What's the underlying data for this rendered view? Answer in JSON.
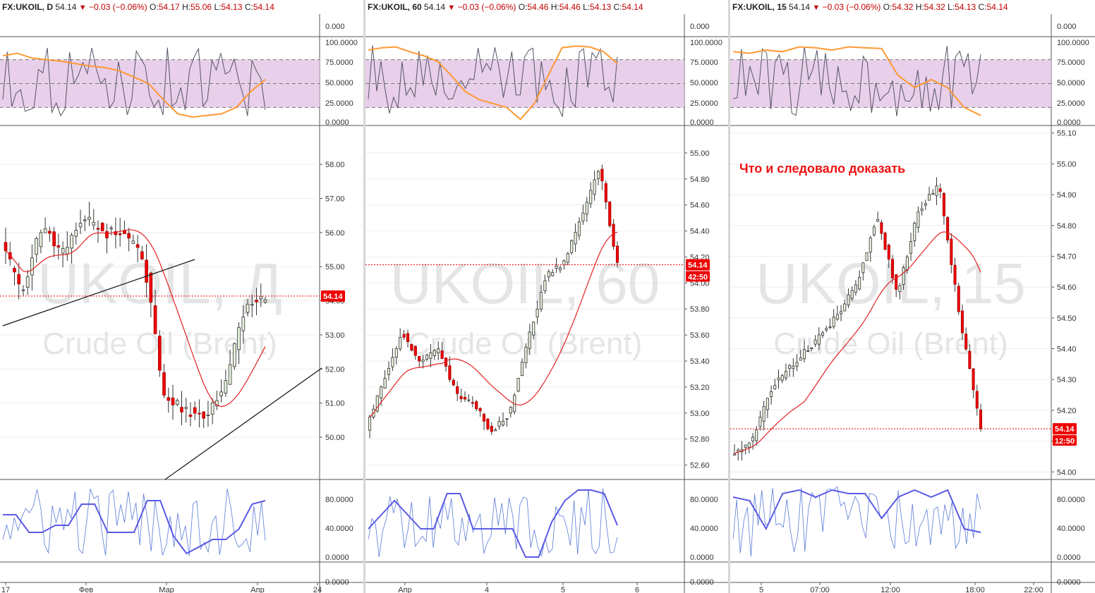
{
  "colors": {
    "up": "#e8f3dc",
    "down": "#ee0000",
    "wick": "#333333",
    "ma": "#e22222",
    "rsi_fast": "#555566",
    "rsi_slow": "#ff9933",
    "band": "#e4c7e6",
    "stoch_slow": "#5a5ae6",
    "stoch_fast": "#5a7ad8",
    "price_label": "#ee0000",
    "annotation": "#ee1111"
  },
  "panels": [
    {
      "symbol": "FX:UKOIL, D",
      "last": "54.14",
      "change": "−0.03 (−0.06%)",
      "o_label": "O:",
      "o": "54.17",
      "h_label": "H:",
      "h": "55.06",
      "l_label": "L:",
      "l": "54.13",
      "c_label": "C:",
      "c": "54.14",
      "watermark_1": "UKOIL, Д",
      "watermark_2": "Crude Oil (Brent)",
      "price_tag": "54.14",
      "countdown": "",
      "price_ticks": [
        "58.00",
        "57.00",
        "56.00",
        "55.00",
        "54.00",
        "53.00",
        "52.00",
        "51.00",
        "50.00"
      ],
      "rsi_ticks": [
        "0.000",
        "100.0000",
        "75.0000",
        "50.0000",
        "25.0000",
        "0.0000"
      ],
      "stoch_ticks": [
        "80.0000",
        "40.0000",
        "0.0000",
        "0.0000"
      ],
      "x_ticks": [
        "17",
        "Фев",
        "Мар",
        "Апр",
        "24"
      ],
      "ylim": [
        48.8,
        59.1
      ],
      "last_price": 54.14
    },
    {
      "symbol": "FX:UKOIL, 60",
      "last": "54.14",
      "change": "−0.03 (−0.06%)",
      "o_label": "O:",
      "o": "54.46",
      "h_label": "H:",
      "h": "54.46",
      "l_label": "L:",
      "l": "54.13",
      "c_label": "C:",
      "c": "54.14",
      "watermark_1": "UKOIL, 60",
      "watermark_2": "Crude Oil (Brent)",
      "price_tag": "54.14",
      "countdown": "42:50",
      "price_ticks": [
        "55.00",
        "54.80",
        "54.60",
        "54.40",
        "54.20",
        "54.00",
        "53.80",
        "53.60",
        "53.40",
        "53.20",
        "53.00",
        "52.80",
        "52.60"
      ],
      "rsi_ticks": [
        "0.000",
        "100.0000",
        "75.0000",
        "50.0000",
        "25.0000",
        "0.0000"
      ],
      "stoch_ticks": [
        "80.0000",
        "40.0000",
        "0.0000",
        "0.0000"
      ],
      "x_ticks": [
        "Апр",
        "4",
        "5",
        "6"
      ],
      "ylim": [
        52.5,
        55.2
      ],
      "last_price": 54.14
    },
    {
      "symbol": "FX:UKOIL, 15",
      "last": "54.14",
      "change": "−0.03 (−0.06%)",
      "o_label": "O:",
      "o": "54.32",
      "h_label": "H:",
      "h": "54.32",
      "l_label": "L:",
      "l": "54.13",
      "c_label": "C:",
      "c": "54.14",
      "watermark_1": "UKOIL, 15",
      "watermark_2": "Crude Oil (Brent)",
      "price_tag": "54.14",
      "countdown": "12:50",
      "annotation": "Что и следовало доказать",
      "price_ticks": [
        "55.10",
        "55.00",
        "54.90",
        "54.80",
        "54.70",
        "54.60",
        "54.50",
        "54.40",
        "54.30",
        "54.20",
        "54.10",
        "54.00"
      ],
      "rsi_ticks": [
        "0.000",
        "100.0000",
        "75.0000",
        "50.0000",
        "25.0000",
        "0.0000"
      ],
      "stoch_ticks": [
        "80.0000",
        "40.0000",
        "0.0000",
        "0.0000"
      ],
      "x_ticks": [
        "5",
        "07:00",
        "12:00",
        "18:00",
        "22:00"
      ],
      "ylim": [
        53.98,
        55.12
      ],
      "last_price": 54.14
    }
  ]
}
